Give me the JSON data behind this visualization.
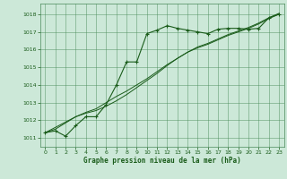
{
  "background_color": "#cce8d8",
  "plot_bg_color": "#cce8d8",
  "grid_color": "#4a8a5a",
  "line_color": "#1a5c1a",
  "xlabel": "Graphe pression niveau de la mer (hPa)",
  "ylim": [
    1010.5,
    1018.6
  ],
  "xlim": [
    -0.5,
    23.5
  ],
  "yticks": [
    1011,
    1012,
    1013,
    1014,
    1015,
    1016,
    1017,
    1018
  ],
  "xticks": [
    0,
    1,
    2,
    3,
    4,
    5,
    6,
    7,
    8,
    9,
    10,
    11,
    12,
    13,
    14,
    15,
    16,
    17,
    18,
    19,
    20,
    21,
    22,
    23
  ],
  "series1_x": [
    0,
    1,
    2,
    3,
    4,
    5,
    6,
    7,
    8,
    9,
    10,
    11,
    12,
    13,
    14,
    15,
    16,
    17,
    18,
    19,
    20,
    21,
    22,
    23
  ],
  "series1_y": [
    1011.3,
    1011.4,
    1011.1,
    1011.7,
    1012.2,
    1012.2,
    1012.9,
    1014.0,
    1015.3,
    1015.3,
    1016.9,
    1017.1,
    1017.35,
    1017.2,
    1017.1,
    1017.0,
    1016.9,
    1017.15,
    1017.2,
    1017.2,
    1017.15,
    1017.2,
    1017.8,
    1018.0
  ],
  "series2_x": [
    0,
    1,
    2,
    3,
    4,
    5,
    6,
    7,
    8,
    9,
    10,
    11,
    12,
    13,
    14,
    15,
    16,
    17,
    18,
    19,
    20,
    21,
    22,
    23
  ],
  "series2_y": [
    1011.3,
    1011.5,
    1011.85,
    1012.2,
    1012.4,
    1012.55,
    1012.8,
    1013.1,
    1013.45,
    1013.85,
    1014.25,
    1014.65,
    1015.1,
    1015.5,
    1015.85,
    1016.15,
    1016.35,
    1016.6,
    1016.85,
    1017.05,
    1017.25,
    1017.5,
    1017.8,
    1018.05
  ],
  "series3_x": [
    0,
    1,
    2,
    3,
    4,
    5,
    6,
    7,
    8,
    9,
    10,
    11,
    12,
    13,
    14,
    15,
    16,
    17,
    18,
    19,
    20,
    21,
    22,
    23
  ],
  "series3_y": [
    1011.3,
    1011.6,
    1011.9,
    1012.2,
    1012.45,
    1012.65,
    1013.0,
    1013.35,
    1013.65,
    1014.0,
    1014.35,
    1014.75,
    1015.15,
    1015.5,
    1015.85,
    1016.1,
    1016.3,
    1016.55,
    1016.8,
    1017.0,
    1017.2,
    1017.45,
    1017.75,
    1018.0
  ]
}
